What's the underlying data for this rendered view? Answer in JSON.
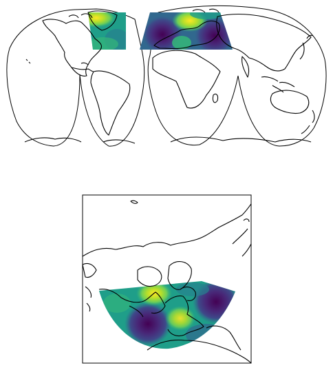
{
  "figure": {
    "panels": [
      {
        "projection": "interrupted-goode-homolosine",
        "region": "global"
      },
      {
        "projection": "polar-azimuthal",
        "region": "northern-hemisphere"
      }
    ],
    "colormap": "viridis",
    "colors": {
      "outline": "#000000",
      "background": "#ffffff",
      "viridis": [
        "#440154",
        "#482878",
        "#3e4989",
        "#31688e",
        "#26828e",
        "#1f9e89",
        "#35b779",
        "#6ece58",
        "#b5de2b",
        "#fde725"
      ]
    }
  }
}
